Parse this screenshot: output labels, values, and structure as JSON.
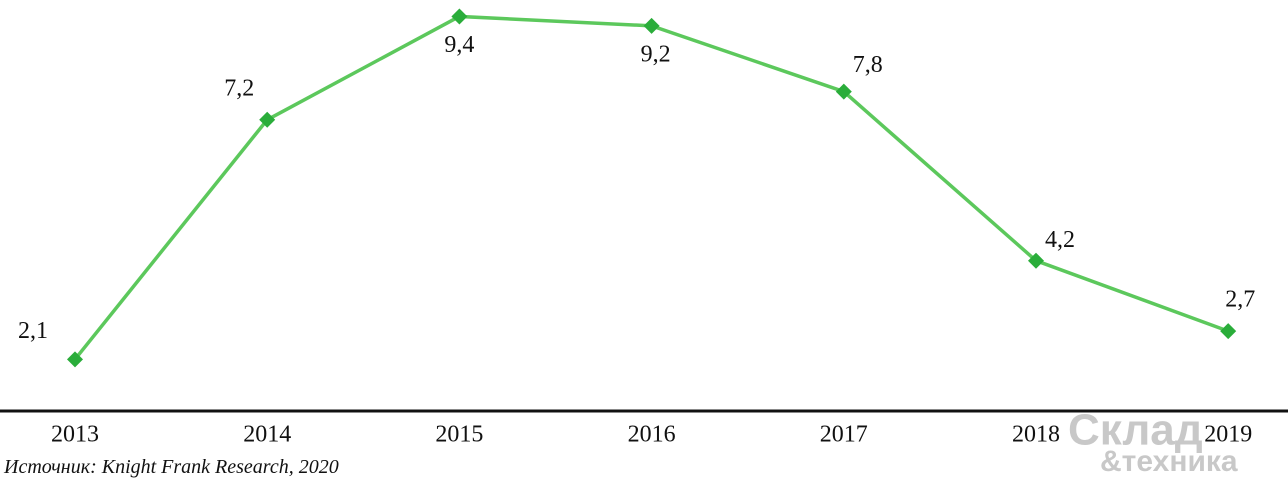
{
  "chart_data": {
    "type": "line",
    "categories": [
      "2013",
      "2014",
      "2015",
      "2016",
      "2017",
      "2018",
      "2019"
    ],
    "series": [
      {
        "name": null,
        "color": "#5cc85c",
        "marker_color": "#2aad3a",
        "values": [
          2.1,
          7.2,
          9.4,
          9.2,
          7.8,
          4.2,
          2.7
        ],
        "value_labels": [
          "2,1",
          "7,2",
          "9,4",
          "9,2",
          "7,8",
          "4,2",
          "2,7"
        ]
      }
    ],
    "ylim": [
      1,
      9.75
    ],
    "source": "Источник: Knight Frank Research, 2020",
    "watermark": [
      "Склад",
      "&техника"
    ]
  }
}
